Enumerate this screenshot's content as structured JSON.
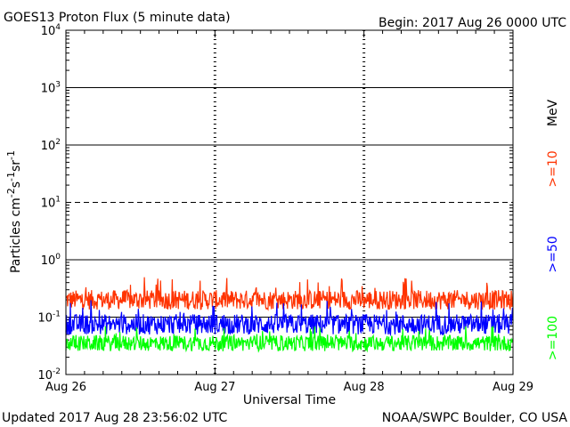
{
  "chart_data": {
    "type": "line",
    "title": "GOES13 Proton Flux (5 minute data)",
    "begin_label": "Begin: 2017 Aug 26 0000 UTC",
    "xlabel": "Universal Time",
    "ylabel": "Particles cm-2s-1sr-1",
    "y_scale": "log",
    "ylim": [
      0.01,
      10000
    ],
    "xlim": [
      "2017-08-26 00:00",
      "2017-08-29 00:00"
    ],
    "x_tick_labels": [
      "Aug 26",
      "Aug 27",
      "Aug 28",
      "Aug 29"
    ],
    "y_tick_labels": [
      {
        "base": "10",
        "exp": "-2"
      },
      {
        "base": "10",
        "exp": "-1"
      },
      {
        "base": "10",
        "exp": "0"
      },
      {
        "base": "10",
        "exp": "1"
      },
      {
        "base": "10",
        "exp": "2"
      },
      {
        "base": "10",
        "exp": "3"
      },
      {
        "base": "10",
        "exp": "4"
      }
    ],
    "unit_label": "MeV",
    "series": [
      {
        "name": ">=10",
        "color": "#ff3300",
        "typical_value": 0.2,
        "min_value": 0.12,
        "max_value": 0.5
      },
      {
        "name": ">=50",
        "color": "#0000ff",
        "typical_value": 0.075,
        "min_value": 0.045,
        "max_value": 0.2
      },
      {
        "name": ">=100",
        "color": "#00ff00",
        "typical_value": 0.035,
        "min_value": 0.022,
        "max_value": 0.07
      }
    ],
    "grid": true
  },
  "footer": {
    "updated": "Updated 2017 Aug 28 23:56:02 UTC",
    "credit": "NOAA/SWPC Boulder, CO USA"
  }
}
